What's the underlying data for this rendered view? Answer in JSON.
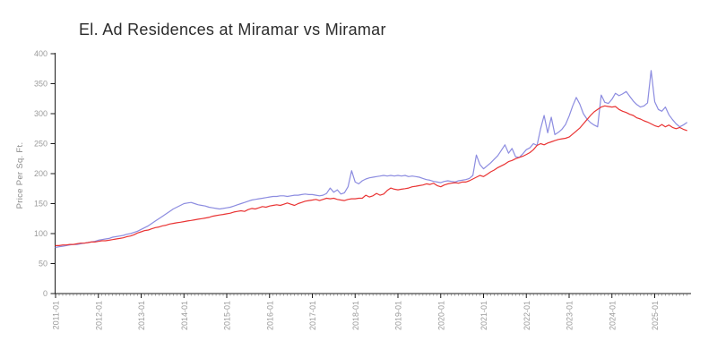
{
  "title": "El. Ad Residences at Miramar vs Miramar",
  "colors": {
    "background": "#ffffff",
    "axis": "#1a1a1a",
    "minor_tick": "#666666",
    "tick_label": "#9a9a9a",
    "title_text": "#2b2b2b",
    "series_blue": "#8c8ce0",
    "series_red": "#e93434"
  },
  "chart_data": {
    "type": "line",
    "title": "El. Ad Residences at Miramar vs Miramar",
    "xlabel": "",
    "ylabel": "Price Per Sq. Ft.",
    "ylim": [
      0,
      400
    ],
    "y_ticks": [
      0,
      50,
      100,
      150,
      200,
      250,
      300,
      350,
      400
    ],
    "x_start_month": "2011-01",
    "x_interval": "monthly",
    "x_tick_labels": [
      "2011-01",
      "2012-01",
      "2013-01",
      "2014-01",
      "2015-01",
      "2016-01",
      "2017-01",
      "2018-01",
      "2019-01",
      "2020-01",
      "2021-01",
      "2022-01",
      "2023-01",
      "2024-01",
      "2025-01"
    ],
    "grid": false,
    "legend": "none",
    "series": [
      {
        "name": "El. Ad Residences at Miramar",
        "color": "#8c8ce0",
        "values": [
          77,
          78,
          79,
          80,
          81,
          82,
          82,
          83,
          84,
          85,
          86,
          87,
          89,
          90,
          91,
          92,
          94,
          95,
          96,
          97,
          99,
          100,
          102,
          104,
          107,
          110,
          113,
          117,
          121,
          125,
          129,
          133,
          137,
          141,
          144,
          147,
          150,
          151,
          152,
          150,
          148,
          147,
          146,
          144,
          143,
          142,
          141,
          142,
          143,
          144,
          146,
          148,
          150,
          152,
          154,
          156,
          157,
          158,
          159,
          160,
          161,
          162,
          162,
          163,
          163,
          162,
          163,
          164,
          164,
          165,
          166,
          165,
          165,
          164,
          163,
          164,
          167,
          176,
          169,
          173,
          166,
          168,
          178,
          205,
          186,
          183,
          188,
          191,
          193,
          194,
          195,
          196,
          197,
          196,
          197,
          196,
          197,
          196,
          197,
          195,
          196,
          195,
          194,
          192,
          190,
          189,
          187,
          186,
          185,
          187,
          188,
          187,
          186,
          188,
          189,
          190,
          192,
          197,
          231,
          215,
          208,
          213,
          218,
          224,
          230,
          239,
          248,
          234,
          242,
          228,
          227,
          233,
          240,
          243,
          250,
          247,
          275,
          297,
          268,
          294,
          265,
          269,
          274,
          282,
          296,
          313,
          327,
          316,
          300,
          291,
          285,
          281,
          278,
          331,
          319,
          317,
          324,
          334,
          330,
          333,
          337,
          329,
          321,
          315,
          311,
          313,
          318,
          372,
          320,
          307,
          304,
          311,
          298,
          290,
          283,
          278,
          281,
          285
        ]
      },
      {
        "name": "Miramar",
        "color": "#e93434",
        "values": [
          80,
          80,
          81,
          81,
          82,
          82,
          83,
          84,
          84,
          85,
          86,
          86,
          87,
          88,
          88,
          89,
          90,
          91,
          92,
          93,
          95,
          96,
          98,
          101,
          103,
          105,
          106,
          108,
          110,
          111,
          113,
          114,
          116,
          117,
          118,
          119,
          120,
          121,
          122,
          123,
          124,
          125,
          126,
          127,
          129,
          130,
          131,
          132,
          133,
          134,
          136,
          137,
          138,
          137,
          140,
          142,
          141,
          143,
          145,
          144,
          146,
          147,
          148,
          147,
          149,
          151,
          149,
          147,
          150,
          152,
          154,
          155,
          156,
          157,
          155,
          157,
          159,
          158,
          159,
          157,
          156,
          155,
          157,
          158,
          158,
          159,
          159,
          164,
          161,
          163,
          167,
          164,
          166,
          172,
          176,
          174,
          173,
          174,
          175,
          176,
          178,
          179,
          180,
          181,
          183,
          182,
          184,
          180,
          178,
          181,
          183,
          184,
          185,
          184,
          186,
          186,
          188,
          191,
          194,
          197,
          195,
          199,
          203,
          206,
          210,
          213,
          216,
          220,
          222,
          225,
          227,
          229,
          232,
          235,
          240,
          247,
          250,
          248,
          251,
          253,
          255,
          257,
          258,
          259,
          261,
          266,
          271,
          276,
          283,
          290,
          297,
          303,
          307,
          311,
          313,
          312,
          311,
          312,
          307,
          304,
          302,
          299,
          297,
          293,
          291,
          288,
          286,
          283,
          280,
          278,
          282,
          278,
          281,
          277,
          275,
          277,
          274,
          272
        ]
      }
    ]
  }
}
